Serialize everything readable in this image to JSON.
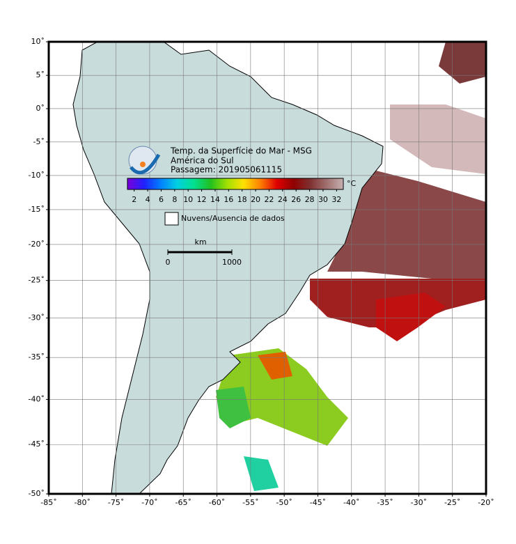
{
  "map": {
    "title_lines": [
      "Temp. da Superfície do Mar - MSG",
      "América do Sul",
      "Passagem: 201905061115"
    ],
    "xlim": [
      -85,
      -20
    ],
    "ylim": [
      -50,
      10
    ],
    "projection": "mercator",
    "xticks": [
      {
        "value": -85,
        "label": "-85˚"
      },
      {
        "value": -80,
        "label": "-80˚"
      },
      {
        "value": -75,
        "label": "-75˚"
      },
      {
        "value": -70,
        "label": "-70˚"
      },
      {
        "value": -65,
        "label": "-65˚"
      },
      {
        "value": -60,
        "label": "-60˚"
      },
      {
        "value": -55,
        "label": "-55˚"
      },
      {
        "value": -50,
        "label": "-50˚"
      },
      {
        "value": -45,
        "label": "-45˚"
      },
      {
        "value": -40,
        "label": "-40˚"
      },
      {
        "value": -35,
        "label": "-35˚"
      },
      {
        "value": -30,
        "label": "-30˚"
      },
      {
        "value": -25,
        "label": "-25˚"
      },
      {
        "value": -20,
        "label": "-20˚"
      }
    ],
    "yticks": [
      {
        "value": 10,
        "label": "10˚"
      },
      {
        "value": 5,
        "label": "5˚"
      },
      {
        "value": 0,
        "label": "0˚"
      },
      {
        "value": -5,
        "label": "-5˚"
      },
      {
        "value": -10,
        "label": "-10˚"
      },
      {
        "value": -15,
        "label": "-15˚"
      },
      {
        "value": -20,
        "label": "-20˚"
      },
      {
        "value": -25,
        "label": "-25˚"
      },
      {
        "value": -30,
        "label": "-30˚"
      },
      {
        "value": -35,
        "label": "-35˚"
      },
      {
        "value": -40,
        "label": "-40˚"
      },
      {
        "value": -45,
        "label": "-45˚"
      },
      {
        "value": -50,
        "label": "-50˚"
      }
    ],
    "grid": true,
    "colorbar": {
      "range": [
        1,
        33
      ],
      "ticks": [
        2,
        4,
        6,
        8,
        10,
        12,
        14,
        16,
        18,
        20,
        22,
        24,
        26,
        28,
        30,
        32
      ],
      "unit": "°C",
      "colors": [
        "#7a00d8",
        "#2020ff",
        "#0080ff",
        "#00d0e0",
        "#00e090",
        "#20c020",
        "#a0e000",
        "#ffe000",
        "#ff8000",
        "#e00000",
        "#900000",
        "#803030",
        "#a07070",
        "#c8b0b0"
      ]
    },
    "legend": "Nuvens/Ausencia de dados",
    "scalebar": {
      "unit": "km",
      "ticks": [
        0,
        1000
      ]
    }
  }
}
